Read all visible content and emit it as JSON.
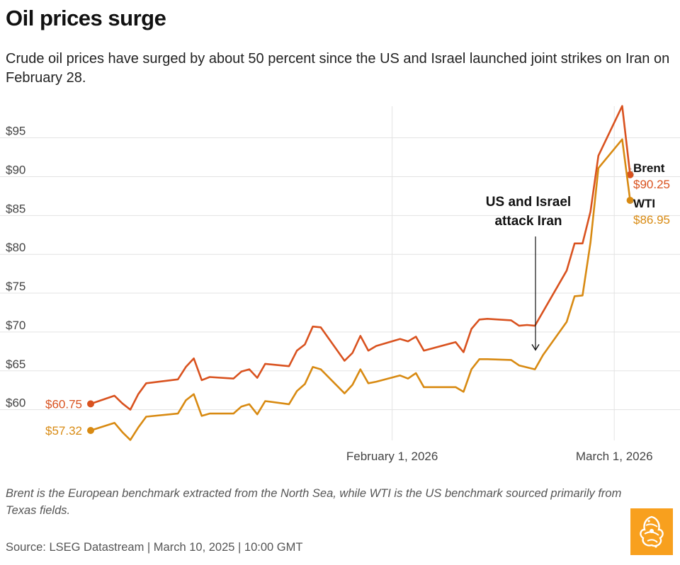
{
  "header": {
    "title": "Oil prices surge",
    "subtitle": "Crude oil prices have surged by about 50 percent since the US and Israel launched joint strikes on Iran on February 28."
  },
  "footer": {
    "note": "Brent is the European benchmark extracted from the North Sea, while WTI is the US benchmark sourced primarily from Texas fields.",
    "source": "Source: LSEG Datastream | March 10, 2025 | 10:00 GMT"
  },
  "logo": {
    "name": "Al Jazeera logo",
    "color": "#f8a01e"
  },
  "chart_data": {
    "type": "line",
    "title": "Oil prices surge",
    "xlabel": "",
    "ylabel": "",
    "ylim": [
      55.5,
      99.5
    ],
    "y_ticks": [
      60,
      65,
      70,
      75,
      80,
      85,
      90,
      95
    ],
    "y_tick_labels": [
      "$60",
      "$65",
      "$70",
      "$75",
      "$80",
      "$85",
      "$90",
      "$95"
    ],
    "x_range_days": [
      0,
      64
    ],
    "x_ticks": [
      {
        "day": 38,
        "label": "February 1, 2026"
      },
      {
        "day": 66,
        "label": "March 1, 2026"
      }
    ],
    "grid": true,
    "annotations": [
      {
        "text_lines": [
          "US and Israel",
          "attack Iran"
        ],
        "day": 67.5,
        "value": 67.5,
        "style": "arrow-down"
      }
    ],
    "series": [
      {
        "name": "Brent",
        "color": "#d9521f",
        "start_label": "$60.75",
        "end_label": "$90.25",
        "points": [
          [
            0,
            60.75
          ],
          [
            3,
            61.8
          ],
          [
            4,
            60.8
          ],
          [
            5,
            60.0
          ],
          [
            6,
            62.0
          ],
          [
            7,
            63.4
          ],
          [
            11,
            63.9
          ],
          [
            12,
            65.5
          ],
          [
            13,
            66.6
          ],
          [
            14,
            63.8
          ],
          [
            15,
            64.2
          ],
          [
            18,
            64.0
          ],
          [
            19,
            64.9
          ],
          [
            20,
            65.2
          ],
          [
            21,
            64.1
          ],
          [
            22,
            65.9
          ],
          [
            25,
            65.6
          ],
          [
            26,
            67.6
          ],
          [
            27,
            68.4
          ],
          [
            28,
            70.7
          ],
          [
            29,
            70.6
          ],
          [
            32,
            66.3
          ],
          [
            33,
            67.3
          ],
          [
            34,
            69.5
          ],
          [
            35,
            67.6
          ],
          [
            36,
            68.2
          ],
          [
            39,
            69.1
          ],
          [
            40,
            68.8
          ],
          [
            41,
            69.4
          ],
          [
            42,
            67.6
          ],
          [
            46,
            68.7
          ],
          [
            47,
            67.4
          ],
          [
            48,
            70.4
          ],
          [
            49,
            71.6
          ],
          [
            50,
            71.7
          ],
          [
            53,
            71.5
          ],
          [
            54,
            70.8
          ],
          [
            55,
            70.9
          ],
          [
            56,
            70.8
          ],
          [
            60,
            77.9
          ],
          [
            61,
            81.4
          ],
          [
            62,
            81.4
          ],
          [
            63,
            85.5
          ],
          [
            64,
            92.7
          ],
          [
            67,
            99.1
          ],
          [
            68,
            90.25
          ]
        ]
      },
      {
        "name": "WTI",
        "color": "#d88a12",
        "start_label": "$57.32",
        "end_label": "$86.95",
        "points": [
          [
            0,
            57.32
          ],
          [
            3,
            58.3
          ],
          [
            4,
            57.1
          ],
          [
            5,
            56.1
          ],
          [
            6,
            57.7
          ],
          [
            7,
            59.1
          ],
          [
            11,
            59.5
          ],
          [
            12,
            61.2
          ],
          [
            13,
            62.0
          ],
          [
            14,
            59.2
          ],
          [
            15,
            59.5
          ],
          [
            18,
            59.5
          ],
          [
            19,
            60.4
          ],
          [
            20,
            60.7
          ],
          [
            21,
            59.4
          ],
          [
            22,
            61.1
          ],
          [
            25,
            60.7
          ],
          [
            26,
            62.4
          ],
          [
            27,
            63.3
          ],
          [
            28,
            65.5
          ],
          [
            29,
            65.2
          ],
          [
            32,
            62.1
          ],
          [
            33,
            63.2
          ],
          [
            34,
            65.2
          ],
          [
            35,
            63.4
          ],
          [
            36,
            63.6
          ],
          [
            39,
            64.4
          ],
          [
            40,
            64.0
          ],
          [
            41,
            64.7
          ],
          [
            42,
            62.9
          ],
          [
            46,
            62.9
          ],
          [
            47,
            62.3
          ],
          [
            48,
            65.2
          ],
          [
            49,
            66.5
          ],
          [
            50,
            66.5
          ],
          [
            53,
            66.4
          ],
          [
            54,
            65.7
          ],
          [
            56,
            65.2
          ],
          [
            57,
            67.0
          ],
          [
            60,
            71.3
          ],
          [
            61,
            74.6
          ],
          [
            62,
            74.7
          ],
          [
            63,
            81.5
          ],
          [
            64,
            91.1
          ],
          [
            67,
            94.8
          ],
          [
            68,
            86.95
          ]
        ]
      }
    ]
  }
}
